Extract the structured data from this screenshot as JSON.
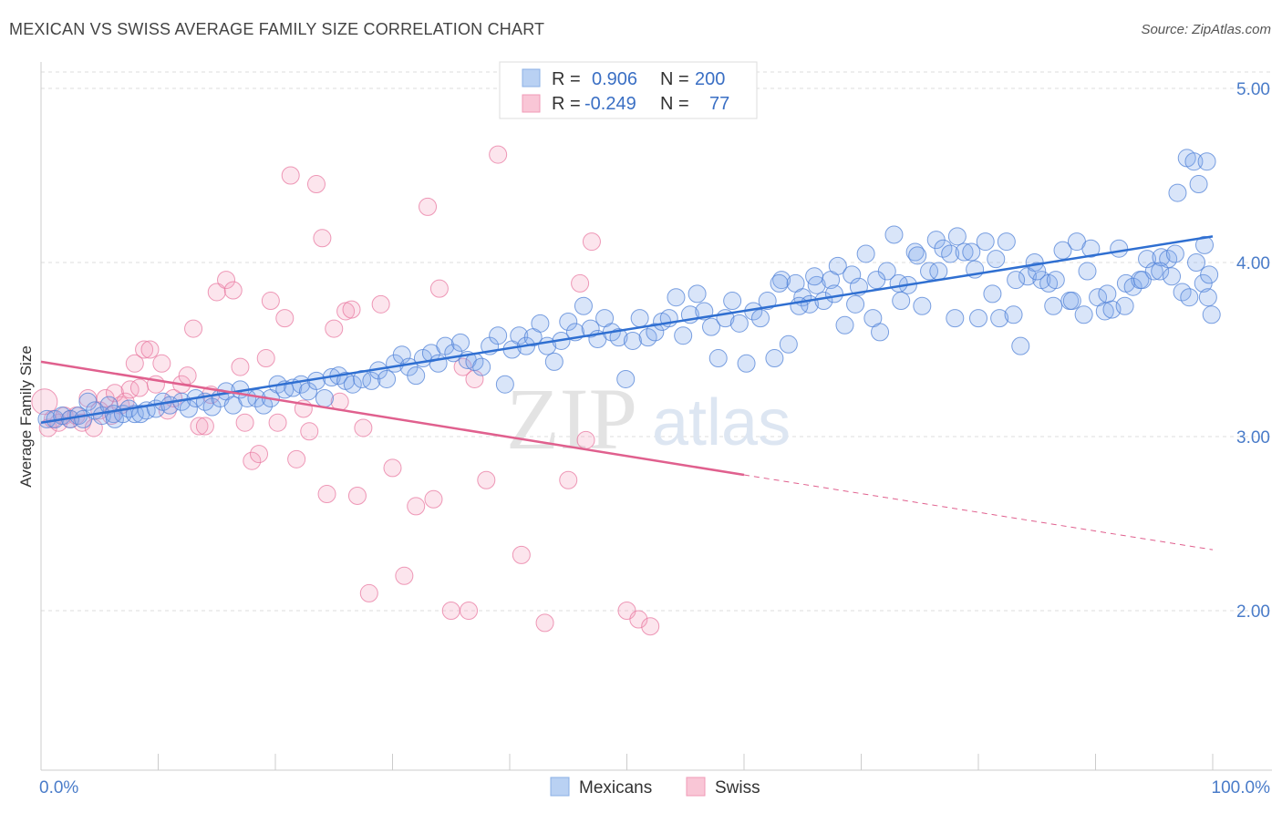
{
  "title": "MEXICAN VS SWISS AVERAGE FAMILY SIZE CORRELATION CHART",
  "source": "Source: ZipAtlas.com",
  "watermark": {
    "zip": "ZIP",
    "atlas": "atlas"
  },
  "colors": {
    "mexicans": "#6ea0e6",
    "swiss": "#f08fb0",
    "blue_line": "#2f6fd1",
    "pink_line": "#e0608e",
    "grid": "#dddddd",
    "tick_text": "#4a7cc9"
  },
  "legend": {
    "r_label": "R =",
    "n_label": "N =",
    "mexicans": {
      "r": "0.906",
      "n": "200"
    },
    "swiss": {
      "r": "-0.249",
      "n": "77"
    }
  },
  "bottom_legend": {
    "mexicans": "Mexicans",
    "swiss": "Swiss"
  },
  "chart_data": {
    "type": "scatter",
    "title": "MEXICAN VS SWISS AVERAGE FAMILY SIZE CORRELATION CHART",
    "xlabel": "",
    "ylabel": "Average Family Size",
    "xlim": [
      0,
      100
    ],
    "ylim": [
      1.0,
      5.1
    ],
    "x_tick_labels": [
      "0.0%",
      "100.0%"
    ],
    "y_ticks": [
      2.0,
      3.0,
      4.0,
      5.0
    ],
    "y_tick_labels": [
      "2.00",
      "3.00",
      "4.00",
      "5.00"
    ],
    "grid": true,
    "legend_placement": "top-center",
    "series": [
      {
        "name": "Mexicans",
        "r": 0.906,
        "n": 200,
        "trend": {
          "x": [
            0,
            100
          ],
          "y": [
            3.08,
            4.15
          ]
        },
        "points": [
          [
            0.5,
            3.1
          ],
          [
            1.2,
            3.1
          ],
          [
            1.8,
            3.12
          ],
          [
            2.5,
            3.1
          ],
          [
            3.2,
            3.12
          ],
          [
            3.6,
            3.1
          ],
          [
            4,
            3.2
          ],
          [
            4.6,
            3.15
          ],
          [
            5.2,
            3.12
          ],
          [
            5.8,
            3.18
          ],
          [
            6.2,
            3.13
          ],
          [
            6.3,
            3.1
          ],
          [
            7,
            3.13
          ],
          [
            7.5,
            3.16
          ],
          [
            8,
            3.13
          ],
          [
            8.5,
            3.13
          ],
          [
            9,
            3.15
          ],
          [
            9.8,
            3.16
          ],
          [
            10.4,
            3.2
          ],
          [
            11,
            3.18
          ],
          [
            12,
            3.2
          ],
          [
            12.6,
            3.16
          ],
          [
            13.2,
            3.22
          ],
          [
            14,
            3.2
          ],
          [
            14.6,
            3.17
          ],
          [
            15.3,
            3.22
          ],
          [
            15.8,
            3.26
          ],
          [
            16.4,
            3.18
          ],
          [
            17,
            3.27
          ],
          [
            17.6,
            3.22
          ],
          [
            18.4,
            3.22
          ],
          [
            19,
            3.18
          ],
          [
            19.6,
            3.22
          ],
          [
            20.2,
            3.3
          ],
          [
            20.8,
            3.27
          ],
          [
            21.5,
            3.28
          ],
          [
            22.2,
            3.3
          ],
          [
            22.8,
            3.26
          ],
          [
            23.5,
            3.32
          ],
          [
            24.2,
            3.22
          ],
          [
            24.8,
            3.34
          ],
          [
            25.4,
            3.35
          ],
          [
            26,
            3.32
          ],
          [
            26.6,
            3.3
          ],
          [
            27.4,
            3.33
          ],
          [
            28.2,
            3.32
          ],
          [
            28.8,
            3.38
          ],
          [
            29.5,
            3.33
          ],
          [
            30.2,
            3.42
          ],
          [
            30.8,
            3.47
          ],
          [
            31.4,
            3.4
          ],
          [
            32,
            3.35
          ],
          [
            32.6,
            3.45
          ],
          [
            33.3,
            3.48
          ],
          [
            33.9,
            3.42
          ],
          [
            34.5,
            3.52
          ],
          [
            35.2,
            3.48
          ],
          [
            35.8,
            3.54
          ],
          [
            36.4,
            3.44
          ],
          [
            37,
            3.43
          ],
          [
            37.6,
            3.4
          ],
          [
            38.3,
            3.52
          ],
          [
            39,
            3.58
          ],
          [
            39.6,
            3.3
          ],
          [
            40.2,
            3.5
          ],
          [
            40.8,
            3.58
          ],
          [
            41.4,
            3.52
          ],
          [
            42,
            3.57
          ],
          [
            42.6,
            3.65
          ],
          [
            43.2,
            3.52
          ],
          [
            43.8,
            3.43
          ],
          [
            44.4,
            3.55
          ],
          [
            45,
            3.66
          ],
          [
            45.6,
            3.6
          ],
          [
            46.3,
            3.75
          ],
          [
            46.9,
            3.62
          ],
          [
            47.5,
            3.56
          ],
          [
            48.1,
            3.68
          ],
          [
            48.7,
            3.6
          ],
          [
            49.3,
            3.57
          ],
          [
            49.9,
            3.33
          ],
          [
            50.5,
            3.55
          ],
          [
            51.1,
            3.68
          ],
          [
            51.8,
            3.57
          ],
          [
            52.4,
            3.6
          ],
          [
            53,
            3.66
          ],
          [
            53.6,
            3.68
          ],
          [
            54.2,
            3.8
          ],
          [
            54.8,
            3.58
          ],
          [
            55.4,
            3.7
          ],
          [
            56,
            3.82
          ],
          [
            56.6,
            3.72
          ],
          [
            57.2,
            3.63
          ],
          [
            57.8,
            3.45
          ],
          [
            58.4,
            3.68
          ],
          [
            59,
            3.78
          ],
          [
            59.6,
            3.65
          ],
          [
            60.2,
            3.42
          ],
          [
            60.8,
            3.72
          ],
          [
            61.4,
            3.68
          ],
          [
            62,
            3.78
          ],
          [
            62.6,
            3.45
          ],
          [
            63.2,
            3.9
          ],
          [
            63.8,
            3.53
          ],
          [
            64.4,
            3.88
          ],
          [
            65,
            3.8
          ],
          [
            65.6,
            3.76
          ],
          [
            66.2,
            3.87
          ],
          [
            66.8,
            3.78
          ],
          [
            67.4,
            3.9
          ],
          [
            68,
            3.98
          ],
          [
            68.6,
            3.64
          ],
          [
            69.2,
            3.93
          ],
          [
            69.8,
            3.86
          ],
          [
            70.4,
            4.05
          ],
          [
            71,
            3.68
          ],
          [
            71.6,
            3.6
          ],
          [
            72.2,
            3.95
          ],
          [
            72.8,
            4.16
          ],
          [
            73.4,
            3.78
          ],
          [
            74,
            3.87
          ],
          [
            74.6,
            4.06
          ],
          [
            75.2,
            3.75
          ],
          [
            75.8,
            3.95
          ],
          [
            76.4,
            4.13
          ],
          [
            77,
            4.08
          ],
          [
            77.6,
            4.05
          ],
          [
            78.2,
            4.15
          ],
          [
            78.8,
            4.06
          ],
          [
            79.4,
            4.06
          ],
          [
            80,
            3.68
          ],
          [
            80.6,
            4.12
          ],
          [
            81.2,
            3.82
          ],
          [
            81.8,
            3.68
          ],
          [
            82.4,
            4.12
          ],
          [
            83,
            3.7
          ],
          [
            83.6,
            3.52
          ],
          [
            84.2,
            3.92
          ],
          [
            84.8,
            4.0
          ],
          [
            85.4,
            3.9
          ],
          [
            86,
            3.88
          ],
          [
            86.6,
            3.9
          ],
          [
            87.2,
            4.07
          ],
          [
            87.8,
            3.78
          ],
          [
            88.4,
            4.12
          ],
          [
            89,
            3.7
          ],
          [
            89.6,
            4.08
          ],
          [
            90.2,
            3.8
          ],
          [
            90.8,
            3.72
          ],
          [
            91.4,
            3.73
          ],
          [
            92,
            4.08
          ],
          [
            92.6,
            3.88
          ],
          [
            93.2,
            3.86
          ],
          [
            93.8,
            3.9
          ],
          [
            94.4,
            4.02
          ],
          [
            95,
            3.95
          ],
          [
            95.6,
            4.03
          ],
          [
            96.2,
            4.02
          ],
          [
            96.8,
            4.05
          ],
          [
            97.4,
            3.83
          ],
          [
            98,
            3.8
          ],
          [
            98.6,
            4.0
          ],
          [
            99.2,
            3.88
          ],
          [
            99.7,
            3.93
          ],
          [
            95.5,
            3.95
          ],
          [
            96.5,
            3.92
          ],
          [
            97,
            4.4
          ],
          [
            97.8,
            4.6
          ],
          [
            98.4,
            4.58
          ],
          [
            98.8,
            4.45
          ],
          [
            99.3,
            4.1
          ],
          [
            99.6,
            3.8
          ],
          [
            99.9,
            3.7
          ],
          [
            99.5,
            4.58
          ],
          [
            94,
            3.9
          ],
          [
            92.5,
            3.75
          ],
          [
            91,
            3.82
          ],
          [
            89.3,
            3.95
          ],
          [
            88,
            3.78
          ],
          [
            86.4,
            3.75
          ],
          [
            85,
            3.95
          ],
          [
            83.2,
            3.9
          ],
          [
            81.5,
            4.02
          ],
          [
            79.7,
            3.96
          ],
          [
            78,
            3.68
          ],
          [
            76.6,
            3.95
          ],
          [
            74.8,
            4.04
          ],
          [
            73.2,
            3.88
          ],
          [
            71.3,
            3.9
          ],
          [
            69.5,
            3.76
          ],
          [
            67.7,
            3.82
          ],
          [
            66,
            3.92
          ],
          [
            64.7,
            3.75
          ],
          [
            63,
            3.88
          ]
        ]
      },
      {
        "name": "Swiss",
        "r": -0.249,
        "n": 77,
        "trend": {
          "x": [
            0,
            60
          ],
          "y": [
            3.43,
            2.78
          ]
        },
        "trend_dashed": {
          "x": [
            60,
            100
          ],
          "y": [
            2.78,
            2.35
          ]
        },
        "points": [
          [
            0.3,
            3.2
          ],
          [
            0.6,
            3.05
          ],
          [
            1,
            3.1
          ],
          [
            1.5,
            3.08
          ],
          [
            2,
            3.12
          ],
          [
            2.5,
            3.1
          ],
          [
            3,
            3.12
          ],
          [
            3.5,
            3.08
          ],
          [
            4,
            3.22
          ],
          [
            4.5,
            3.05
          ],
          [
            5,
            3.15
          ],
          [
            5.5,
            3.22
          ],
          [
            6,
            3.12
          ],
          [
            6.3,
            3.25
          ],
          [
            6.8,
            3.18
          ],
          [
            7.2,
            3.2
          ],
          [
            7.6,
            3.27
          ],
          [
            8,
            3.42
          ],
          [
            8.4,
            3.28
          ],
          [
            8.8,
            3.5
          ],
          [
            9.3,
            3.5
          ],
          [
            9.8,
            3.3
          ],
          [
            10.3,
            3.42
          ],
          [
            10.8,
            3.15
          ],
          [
            11.3,
            3.22
          ],
          [
            12,
            3.3
          ],
          [
            12.5,
            3.35
          ],
          [
            13,
            3.62
          ],
          [
            13.5,
            3.06
          ],
          [
            14,
            3.06
          ],
          [
            14.5,
            3.24
          ],
          [
            15,
            3.83
          ],
          [
            15.8,
            3.9
          ],
          [
            16.4,
            3.84
          ],
          [
            17,
            3.4
          ],
          [
            17.4,
            3.08
          ],
          [
            18,
            2.86
          ],
          [
            18.6,
            2.9
          ],
          [
            19.2,
            3.45
          ],
          [
            19.6,
            3.78
          ],
          [
            20.2,
            3.08
          ],
          [
            20.8,
            3.68
          ],
          [
            21.3,
            4.5
          ],
          [
            21.8,
            2.87
          ],
          [
            22.4,
            3.16
          ],
          [
            22.9,
            3.03
          ],
          [
            23.5,
            4.45
          ],
          [
            24,
            4.14
          ],
          [
            24.4,
            2.67
          ],
          [
            25,
            3.62
          ],
          [
            25.5,
            3.2
          ],
          [
            26,
            3.72
          ],
          [
            26.5,
            3.73
          ],
          [
            27,
            2.66
          ],
          [
            27.5,
            3.05
          ],
          [
            28,
            2.1
          ],
          [
            29,
            3.76
          ],
          [
            30,
            2.82
          ],
          [
            31,
            2.2
          ],
          [
            32,
            2.6
          ],
          [
            33,
            4.32
          ],
          [
            33.5,
            2.64
          ],
          [
            34,
            3.85
          ],
          [
            35,
            2.0
          ],
          [
            36,
            3.4
          ],
          [
            36.5,
            2.0
          ],
          [
            37,
            3.33
          ],
          [
            38,
            2.75
          ],
          [
            39,
            4.62
          ],
          [
            41,
            2.32
          ],
          [
            43,
            1.93
          ],
          [
            45,
            2.75
          ],
          [
            46,
            3.88
          ],
          [
            46.5,
            2.98
          ],
          [
            47,
            4.12
          ],
          [
            50,
            2.0
          ],
          [
            51,
            1.95
          ],
          [
            52,
            1.91
          ]
        ]
      }
    ]
  }
}
